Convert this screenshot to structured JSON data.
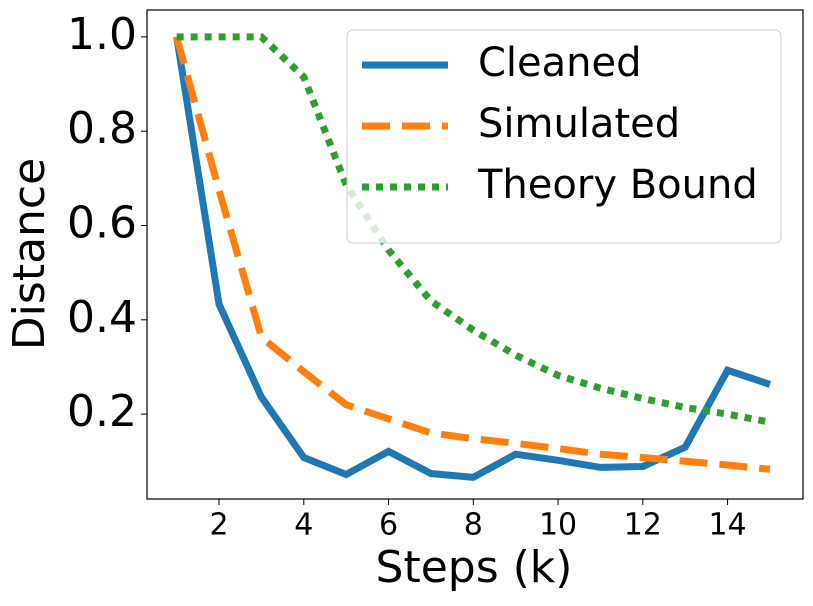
{
  "chart_data": {
    "type": "line",
    "xlabel": "Steps (k)",
    "ylabel": "Distance",
    "x": [
      1,
      2,
      3,
      4,
      5,
      6,
      7,
      8,
      9,
      10,
      11,
      12,
      13,
      14,
      15
    ],
    "series": [
      {
        "name": "Cleaned",
        "color": "#1f77b4",
        "dash": "solid",
        "values": [
          1.0,
          0.433,
          0.236,
          0.108,
          0.072,
          0.121,
          0.074,
          0.066,
          0.115,
          0.102,
          0.087,
          0.089,
          0.13,
          0.293,
          0.263
        ]
      },
      {
        "name": "Simulated",
        "color": "#ff7f0e",
        "dash": "dashed",
        "values": [
          1.0,
          0.675,
          0.363,
          0.29,
          0.22,
          0.19,
          0.16,
          0.148,
          0.138,
          0.127,
          0.115,
          0.108,
          0.1,
          0.092,
          0.083
        ]
      },
      {
        "name": "Theory Bound",
        "color": "#2ca02c",
        "dash": "dotted",
        "values": [
          1.0,
          1.0,
          1.0,
          0.915,
          0.686,
          0.548,
          0.44,
          0.378,
          0.325,
          0.282,
          0.255,
          0.233,
          0.214,
          0.2,
          0.183
        ]
      }
    ],
    "xlim": [
      0.3,
      15.78
    ],
    "ylim": [
      0.02,
      1.057
    ],
    "xticks": [
      2,
      4,
      6,
      8,
      10,
      12,
      14
    ],
    "yticks": [
      0.2,
      0.4,
      0.6,
      0.8,
      {
        "value": 1,
        "label": "1.0"
      }
    ],
    "legend": "upper right"
  }
}
